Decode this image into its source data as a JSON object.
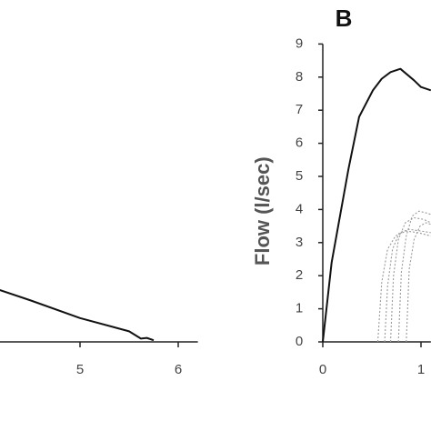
{
  "chart_data": [
    {
      "type": "line",
      "xlim": [
        0,
        6.2
      ],
      "ylim": [
        0,
        9
      ],
      "xticks": [
        5,
        6
      ],
      "yticks": [],
      "series": [
        {
          "color": "#111111",
          "style": "solid",
          "x": [
            4.15,
            4.5,
            5.0,
            5.5,
            5.62,
            5.68,
            5.75
          ],
          "values": [
            1.6,
            1.25,
            0.72,
            0.32,
            0.1,
            0.12,
            0.05
          ]
        }
      ]
    },
    {
      "type": "line",
      "title": "B",
      "ylabel": "Flow (l/sec)",
      "xlim": [
        0,
        1.1
      ],
      "ylim": [
        0,
        9
      ],
      "xticks": [
        0,
        1
      ],
      "yticks": [
        0,
        1,
        2,
        3,
        4,
        5,
        6,
        7,
        8,
        9
      ],
      "series": [
        {
          "color": "#111111",
          "style": "solid",
          "x": [
            0,
            0.09,
            0.26,
            0.37,
            0.51,
            0.6,
            0.69,
            0.79,
            0.93,
            1.0,
            1.1
          ],
          "values": [
            0,
            2.4,
            5.2,
            6.8,
            7.6,
            7.95,
            8.15,
            8.25,
            7.9,
            7.7,
            7.6
          ]
        },
        {
          "color": "#999999",
          "style": "dotted",
          "x": [
            0.56,
            0.6,
            0.66,
            0.74,
            0.85,
            0.97,
            1.1
          ],
          "values": [
            0,
            1.8,
            2.8,
            3.2,
            3.35,
            3.3,
            3.2
          ]
        },
        {
          "color": "#999999",
          "style": "dotted",
          "x": [
            0.63,
            0.66,
            0.71,
            0.78,
            0.88,
            1.0,
            1.1
          ],
          "values": [
            0,
            1.7,
            2.8,
            3.3,
            3.4,
            3.35,
            3.3
          ]
        },
        {
          "color": "#999999",
          "style": "dotted",
          "x": [
            0.69,
            0.72,
            0.77,
            0.84,
            0.93,
            1.03,
            1.1
          ],
          "values": [
            0,
            2.0,
            3.1,
            3.6,
            3.75,
            3.7,
            3.6
          ]
        },
        {
          "color": "#999999",
          "style": "dotted",
          "x": [
            0.77,
            0.8,
            0.85,
            0.91,
            0.98,
            1.05,
            1.1
          ],
          "values": [
            0,
            2.1,
            3.2,
            3.8,
            3.95,
            3.9,
            3.85
          ]
        },
        {
          "color": "#999999",
          "style": "dotted",
          "x": [
            0.85,
            0.88,
            0.93,
            0.99,
            1.05,
            1.1
          ],
          "values": [
            0,
            2.2,
            3.1,
            3.5,
            3.6,
            3.55
          ]
        }
      ]
    }
  ]
}
